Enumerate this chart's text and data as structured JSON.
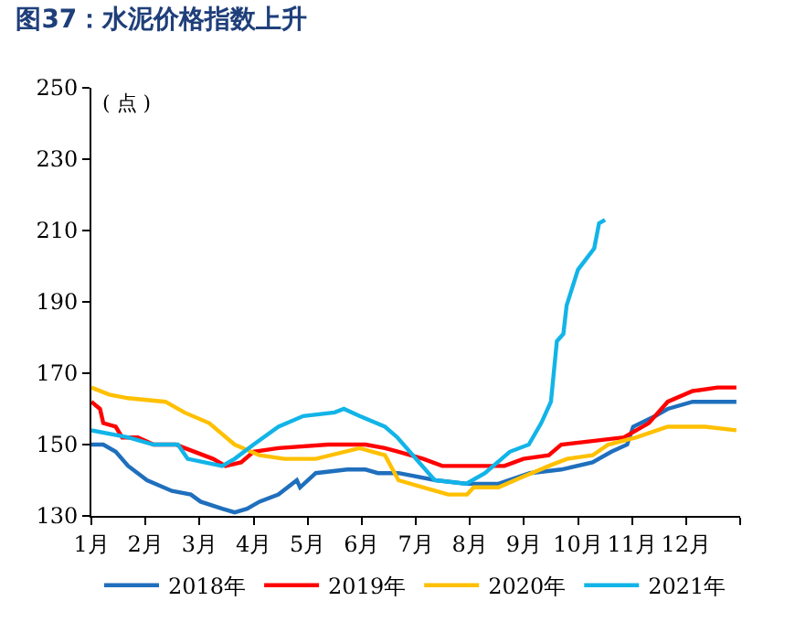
{
  "chart_data": {
    "type": "line",
    "title": "图37：水泥价格指数上升",
    "ylabel": "( 点 )",
    "xlim": [
      1,
      13
    ],
    "xticks": [
      {
        "value": 1,
        "label": "1月"
      },
      {
        "value": 2,
        "label": "2月"
      },
      {
        "value": 3,
        "label": "3月"
      },
      {
        "value": 4,
        "label": "4月"
      },
      {
        "value": 5,
        "label": "5月"
      },
      {
        "value": 6,
        "label": "6月"
      },
      {
        "value": 7,
        "label": "7月"
      },
      {
        "value": 8,
        "label": "8月"
      },
      {
        "value": 9,
        "label": "9月"
      },
      {
        "value": 10,
        "label": "10月"
      },
      {
        "value": 11,
        "label": "11月"
      },
      {
        "value": 12,
        "label": "12月"
      },
      {
        "value": 13,
        "label": null
      }
    ],
    "ylim": [
      130,
      250
    ],
    "yticks": [
      130,
      150,
      170,
      190,
      210,
      230,
      250
    ],
    "legend": "bottom",
    "marker": "none",
    "line_style": "solid",
    "series": [
      {
        "name": "2018年",
        "color": "#1f6fbd",
        "x": [
          1.0,
          1.22,
          1.45,
          1.68,
          2.03,
          2.49,
          2.84,
          3.02,
          3.42,
          3.65,
          3.88,
          4.11,
          4.46,
          4.8,
          4.86,
          5.15,
          5.73,
          6.07,
          6.3,
          6.68,
          7.37,
          7.95,
          8.53,
          9.11,
          9.69,
          10.27,
          10.62,
          10.91,
          11.02,
          11.43,
          11.66,
          12.12,
          12.93
        ],
        "values": [
          150,
          150,
          148,
          144,
          140,
          137,
          136,
          134,
          132,
          131,
          132,
          134,
          136,
          140,
          138,
          142,
          143,
          143,
          142,
          142,
          140,
          139,
          139,
          142,
          143,
          145,
          148,
          150,
          155,
          158,
          160,
          162,
          162
        ]
      },
      {
        "name": "2019年",
        "color": "#ff0000",
        "x": [
          1.0,
          1.16,
          1.22,
          1.45,
          1.57,
          1.86,
          2.15,
          2.56,
          2.73,
          3.25,
          3.48,
          3.77,
          4.0,
          4.46,
          5.38,
          6.07,
          6.43,
          6.68,
          7.14,
          7.49,
          8.07,
          8.64,
          8.99,
          9.46,
          9.69,
          10.27,
          10.85,
          11.31,
          11.66,
          12.12,
          12.58,
          12.93
        ],
        "values": [
          162,
          160,
          156,
          155,
          152,
          152,
          150,
          150,
          149,
          146,
          144,
          145,
          148,
          149,
          150,
          150,
          149,
          148,
          146,
          144,
          144,
          144,
          146,
          147,
          150,
          151,
          152,
          156,
          162,
          165,
          166,
          166
        ]
      },
      {
        "name": "2020年",
        "color": "#ffc000",
        "x": [
          1.0,
          1.33,
          1.68,
          2.37,
          2.72,
          3.18,
          3.65,
          4.11,
          4.57,
          5.15,
          5.96,
          6.43,
          6.68,
          7.14,
          7.6,
          7.95,
          8.07,
          8.53,
          8.99,
          9.46,
          9.8,
          10.27,
          10.56,
          11.08,
          11.66,
          12.35,
          12.93
        ],
        "values": [
          166,
          164,
          163,
          162,
          159,
          156,
          150,
          147,
          146,
          146,
          149,
          147,
          140,
          138,
          136,
          136,
          138,
          138,
          141,
          144,
          146,
          147,
          150,
          152,
          155,
          155,
          154
        ]
      },
      {
        "name": "2021年",
        "color": "#12b4e8",
        "x": [
          1.0,
          1.68,
          2.15,
          2.6,
          2.78,
          3.42,
          3.65,
          4.0,
          4.46,
          4.92,
          5.5,
          5.67,
          5.96,
          6.43,
          6.66,
          7.35,
          7.93,
          8.28,
          8.74,
          9.09,
          9.32,
          9.5,
          9.61,
          9.73,
          9.79,
          10.0,
          10.3,
          10.39,
          10.5
        ],
        "values": [
          154,
          152,
          150,
          150,
          146,
          144,
          146,
          150,
          155,
          158,
          159,
          160,
          158,
          155,
          152,
          140,
          139,
          142,
          148,
          150,
          156,
          162,
          179,
          181,
          189,
          199,
          205,
          212,
          213
        ]
      }
    ]
  }
}
